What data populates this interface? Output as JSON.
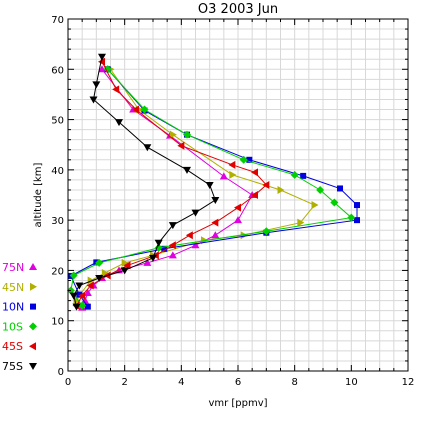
{
  "chart_data": {
    "type": "line",
    "title": "O3 2003 Jun",
    "xlabel": "vmr [ppmv]",
    "ylabel": "altitude [km]",
    "xlim": [
      0,
      12
    ],
    "ylim": [
      0,
      70
    ],
    "xticks": [
      "0",
      "2",
      "4",
      "6",
      "8",
      "10",
      "12"
    ],
    "yticks": [
      "0",
      "10",
      "20",
      "30",
      "40",
      "50",
      "60",
      "70"
    ],
    "grid": true,
    "legend_position": "left",
    "series": [
      {
        "name": "75N",
        "color": "#e000e0",
        "marker": "triangle-up",
        "points": [
          [
            1.2,
            60.0
          ],
          [
            2.3,
            52.0
          ],
          [
            3.6,
            46.8
          ],
          [
            5.5,
            38.7
          ],
          [
            6.5,
            35.0
          ],
          [
            6.0,
            30.0
          ],
          [
            5.2,
            27.0
          ],
          [
            4.5,
            25.0
          ],
          [
            3.7,
            23.0
          ],
          [
            2.8,
            21.5
          ],
          [
            1.8,
            20.0
          ],
          [
            1.2,
            18.5
          ],
          [
            0.9,
            17.0
          ],
          [
            0.7,
            15.5
          ],
          [
            0.6,
            14.0
          ],
          [
            0.5,
            12.6
          ]
        ]
      },
      {
        "name": "45N",
        "color": "#b0b000",
        "marker": "triangle-right",
        "points": [
          [
            1.5,
            60.0
          ],
          [
            2.5,
            52.0
          ],
          [
            3.7,
            47.0
          ],
          [
            5.8,
            39.0
          ],
          [
            7.5,
            36.0
          ],
          [
            8.7,
            33.0
          ],
          [
            8.2,
            29.5
          ],
          [
            6.2,
            27.0
          ],
          [
            4.8,
            26.0
          ],
          [
            3.0,
            23.0
          ],
          [
            2.0,
            21.5
          ],
          [
            1.3,
            19.5
          ],
          [
            0.8,
            18.0
          ],
          [
            0.4,
            15.0
          ],
          [
            0.3,
            14.0
          ]
        ]
      },
      {
        "name": "10N",
        "color": "#0000e0",
        "marker": "square",
        "points": [
          [
            1.4,
            60.0
          ],
          [
            2.7,
            51.8
          ],
          [
            4.2,
            47.0
          ],
          [
            6.4,
            42.0
          ],
          [
            8.3,
            38.8
          ],
          [
            9.6,
            36.3
          ],
          [
            10.2,
            33.0
          ],
          [
            10.2,
            30.0
          ],
          [
            7.0,
            27.5
          ],
          [
            3.4,
            24.3
          ],
          [
            1.0,
            21.6
          ],
          [
            0.1,
            18.9
          ],
          [
            0.4,
            15.2
          ],
          [
            0.7,
            12.8
          ]
        ]
      },
      {
        "name": "10S",
        "color": "#00d000",
        "marker": "diamond",
        "points": [
          [
            1.4,
            60.0
          ],
          [
            2.7,
            52.0
          ],
          [
            4.2,
            47.0
          ],
          [
            6.2,
            42.0
          ],
          [
            8.0,
            39.0
          ],
          [
            8.9,
            36.0
          ],
          [
            9.4,
            33.5
          ],
          [
            10.0,
            30.5
          ],
          [
            7.0,
            27.8
          ],
          [
            3.2,
            24.5
          ],
          [
            1.1,
            21.5
          ],
          [
            0.2,
            19.0
          ],
          [
            0.1,
            16.0
          ],
          [
            0.5,
            13.0
          ]
        ]
      },
      {
        "name": "45S",
        "color": "#e00000",
        "marker": "triangle-left",
        "points": [
          [
            1.2,
            61.5
          ],
          [
            1.7,
            56.0
          ],
          [
            2.4,
            52.0
          ],
          [
            4.0,
            44.8
          ],
          [
            5.8,
            41.0
          ],
          [
            6.6,
            39.5
          ],
          [
            7.0,
            37.0
          ],
          [
            6.6,
            35.0
          ],
          [
            6.0,
            32.5
          ],
          [
            5.2,
            29.5
          ],
          [
            4.3,
            27.0
          ],
          [
            3.7,
            25.0
          ],
          [
            3.1,
            23.0
          ],
          [
            2.1,
            21.0
          ],
          [
            1.4,
            19.0
          ],
          [
            0.8,
            17.0
          ],
          [
            0.5,
            15.0
          ],
          [
            0.3,
            13.0
          ]
        ]
      },
      {
        "name": "75S",
        "color": "#000000",
        "marker": "triangle-down",
        "points": [
          [
            1.2,
            62.5
          ],
          [
            1.0,
            57.0
          ],
          [
            0.9,
            54.0
          ],
          [
            1.8,
            49.5
          ],
          [
            2.8,
            44.5
          ],
          [
            4.2,
            40.0
          ],
          [
            5.0,
            37.0
          ],
          [
            5.2,
            34.0
          ],
          [
            4.5,
            31.5
          ],
          [
            3.7,
            29.0
          ],
          [
            3.2,
            25.5
          ],
          [
            3.0,
            22.5
          ],
          [
            2.0,
            20.0
          ],
          [
            1.1,
            18.5
          ],
          [
            0.4,
            17.0
          ],
          [
            0.2,
            15.0
          ],
          [
            0.3,
            12.8
          ]
        ]
      }
    ]
  }
}
